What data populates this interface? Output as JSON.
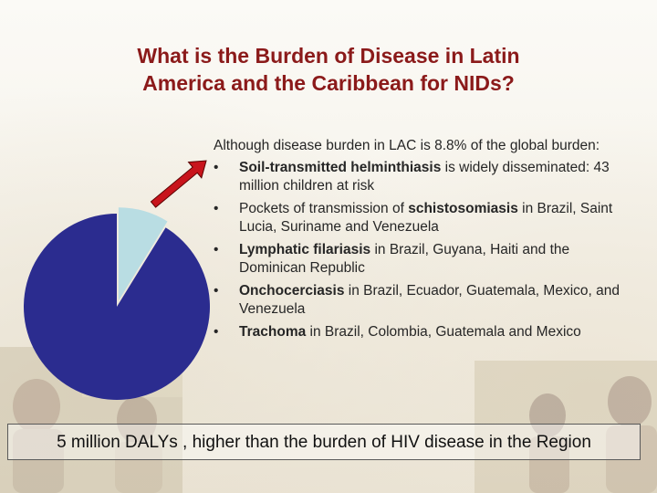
{
  "slide": {
    "title_line1": "What is the Burden of Disease in Latin",
    "title_line2": "America and the Caribbean for NIDs?",
    "intro": "Although disease burden in LAC is 8.8% of the global burden:",
    "bullets": [
      {
        "bold": "Soil-transmitted helminthiasis",
        "rest": " is widely disseminated: 43 million children at risk"
      },
      {
        "pre": "Pockets of transmission of ",
        "bold": "schistosomiasis",
        "rest": " in Brazil, Saint Lucia, Suriname and Venezuela"
      },
      {
        "bold": "Lymphatic filariasis",
        "rest": "  in Brazil, Guyana, Haiti and the Dominican Republic"
      },
      {
        "bold": "Onchocerciasis",
        "rest": " in Brazil, Ecuador, Guatemala, Mexico, and Venezuela"
      },
      {
        "bold": "Trachoma",
        "rest": " in Brazil, Colombia, Guatemala and Mexico"
      }
    ],
    "bullet_char": "•",
    "footer": "5 million DALYs , higher than the burden of HIV disease in the Region"
  },
  "pie": {
    "lac_share_percent": 8.8,
    "colors": {
      "rest": "#2b2c8f",
      "lac": "#b9dde3",
      "arrow": "#c8141c"
    }
  }
}
